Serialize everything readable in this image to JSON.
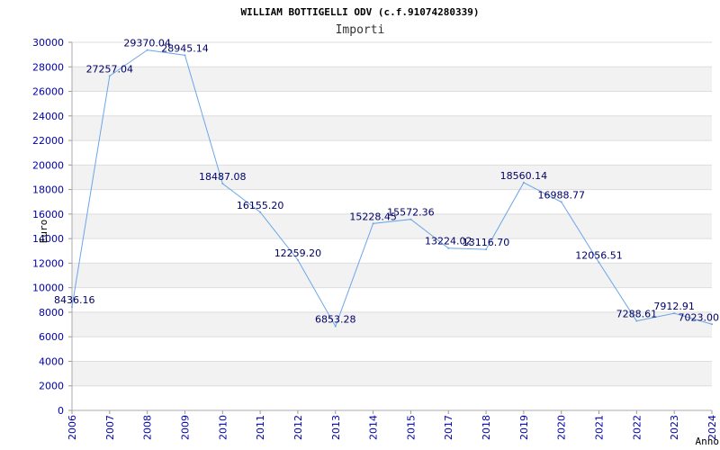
{
  "chart_data": {
    "type": "line",
    "title": "WILLIAM BOTTIGELLI ODV (c.f.91074280339)",
    "subtitle": "Importi",
    "xlabel": "Anno",
    "ylabel": "Euro",
    "ylim": [
      0,
      30000
    ],
    "yticks": [
      0,
      2000,
      4000,
      6000,
      8000,
      10000,
      12000,
      14000,
      16000,
      18000,
      20000,
      22000,
      24000,
      26000,
      28000,
      30000
    ],
    "x": [
      "2006",
      "2007",
      "2008",
      "2009",
      "2010",
      "2011",
      "2012",
      "2013",
      "2014",
      "2015",
      "2017",
      "2018",
      "2019",
      "2020",
      "2021",
      "2022",
      "2023",
      "2024"
    ],
    "series": [
      {
        "values": [
          8436.16,
          27257.04,
          29370.04,
          28945.14,
          18487.08,
          16155.2,
          12259.2,
          6853.28,
          15228.45,
          15572.36,
          13224.02,
          13116.7,
          18560.14,
          16988.77,
          12056.51,
          7288.61,
          7912.91,
          7023.0
        ],
        "labels": [
          "8436.16",
          "27257.04",
          "29370.04",
          "28945.14",
          "18487.08",
          "16155.20",
          "12259.20",
          "6853.28",
          "15228.45",
          "15572.36",
          "13224.02",
          "13116.70",
          "18560.14",
          "16988.77",
          "12056.51",
          "7288.61",
          "7912.91",
          "7023.00"
        ]
      }
    ],
    "grid": "horizontal-bands",
    "line_color": "#6aa6e8"
  }
}
